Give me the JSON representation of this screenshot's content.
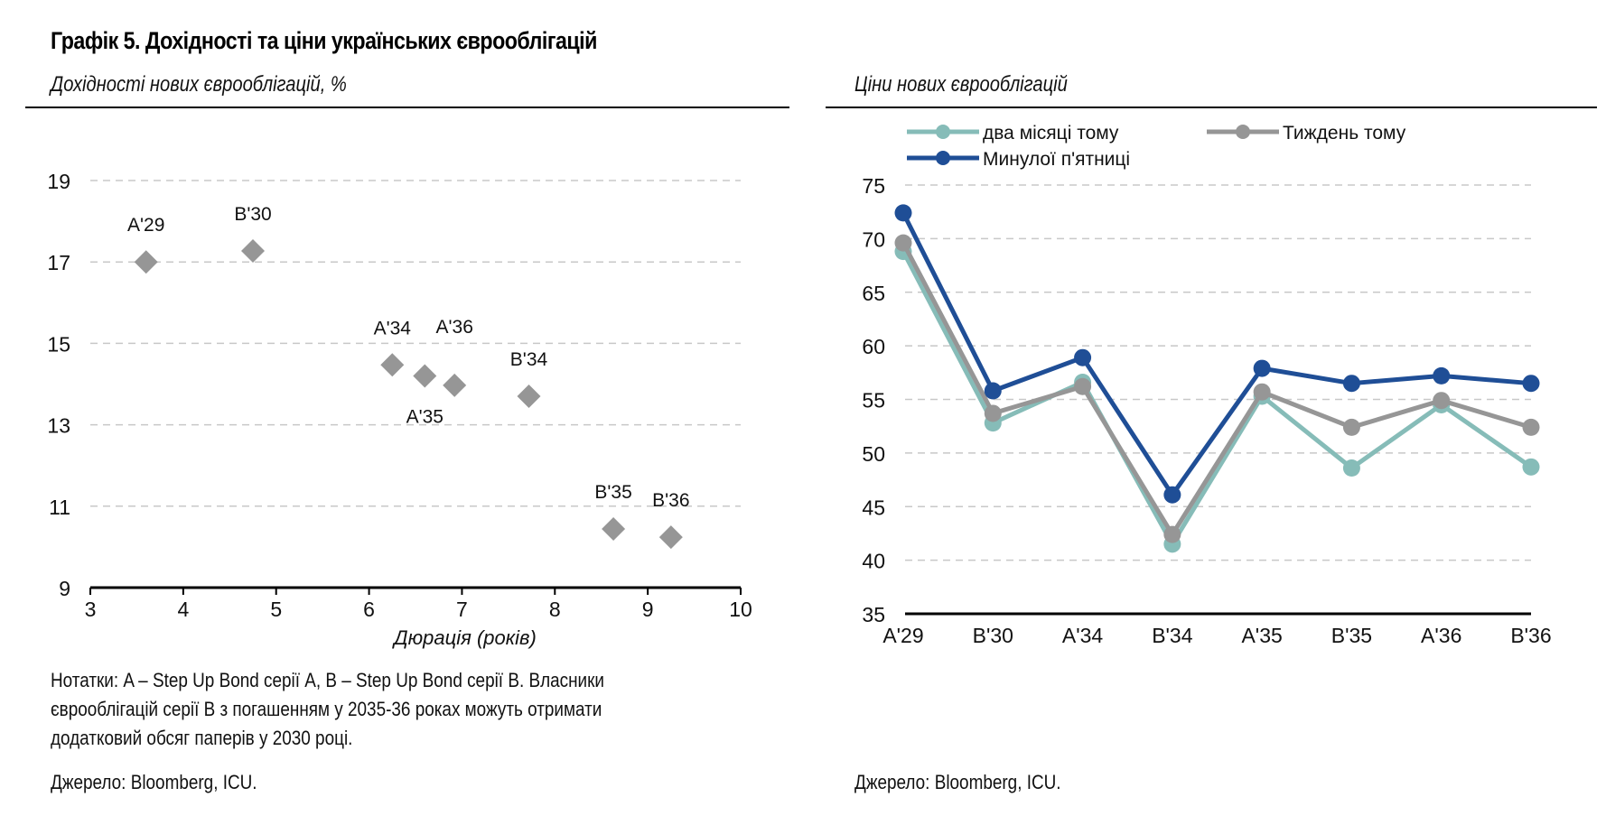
{
  "header": {
    "title": "Графік 5. Дохідності та ціни українських єврооблігацій"
  },
  "left_panel": {
    "subtitle": "Дохідності нових єврооблігацій, %",
    "notes": "Нотатки: A – Step Up Bond серії A, B – Step Up Bond серії B. Власники єврооблігацій серії B з погашенням у 2035-36 роках можуть отримати додатковий обсяг паперів у 2030 році.",
    "source": "Джерело: Bloomberg, ICU."
  },
  "right_panel": {
    "subtitle": "Ціни нових єврооблігацій",
    "source": "Джерело: Bloomberg, ICU."
  },
  "colors": {
    "marker": "#969696",
    "grid": "#c8c8c8",
    "two_months_ago": "#86bcb8",
    "week_ago": "#969696",
    "last_friday": "#1f4e96"
  },
  "chart_data": [
    {
      "type": "scatter",
      "title": "Дохідності нових єврооблігацій, %",
      "xlabel": "Дюрація (років)",
      "ylabel": "",
      "xlim": [
        3,
        10
      ],
      "ylim": [
        9,
        19
      ],
      "xticks": [
        "3",
        "4",
        "5",
        "6",
        "7",
        "8",
        "9",
        "10"
      ],
      "yticks": [
        "9",
        "11",
        "13",
        "15",
        "17",
        "19"
      ],
      "grid": "horizontal-dashed",
      "points": [
        {
          "label": "A'29",
          "x": 3.6,
          "y": 17.0
        },
        {
          "label": "B'30",
          "x": 4.75,
          "y": 17.27
        },
        {
          "label": "A'34",
          "x": 6.25,
          "y": 14.47
        },
        {
          "label": "A'35",
          "x": 6.6,
          "y": 14.2
        },
        {
          "label": "A'36",
          "x": 6.92,
          "y": 13.97
        },
        {
          "label": "B'34",
          "x": 7.72,
          "y": 13.7
        },
        {
          "label": "B'35",
          "x": 8.63,
          "y": 10.44
        },
        {
          "label": "B'36",
          "x": 9.25,
          "y": 10.24
        }
      ]
    },
    {
      "type": "line",
      "title": "Ціни нових єврооблігацій",
      "xlabel": "",
      "ylabel": "",
      "ylim": [
        35,
        75
      ],
      "yticks": [
        "35",
        "40",
        "45",
        "50",
        "55",
        "60",
        "65",
        "70",
        "75"
      ],
      "grid": "horizontal-dashed",
      "legend": "top",
      "categories": [
        "A'29",
        "B'30",
        "A'34",
        "B'34",
        "A'35",
        "B'35",
        "A'36",
        "B'36"
      ],
      "series": [
        {
          "name": "два місяці тому",
          "color_key": "two_months_ago",
          "values": [
            68.8,
            52.8,
            56.6,
            41.5,
            55.3,
            48.6,
            54.5,
            48.7
          ]
        },
        {
          "name": "Тиждень тому",
          "color_key": "week_ago",
          "values": [
            69.6,
            53.7,
            56.2,
            42.4,
            55.7,
            52.4,
            54.9,
            52.4
          ]
        },
        {
          "name": "Минулої п'ятниці",
          "color_key": "last_friday",
          "values": [
            72.4,
            55.8,
            58.9,
            46.1,
            57.9,
            56.5,
            57.2,
            56.5
          ]
        }
      ]
    }
  ]
}
